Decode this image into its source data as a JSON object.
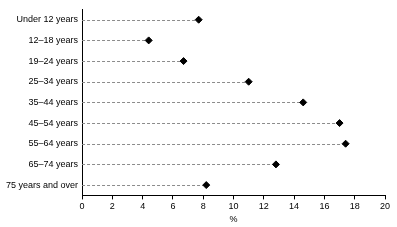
{
  "chart_data": {
    "type": "dot",
    "categories": [
      "Under 12 years",
      "12–18 years",
      "19–24 years",
      "25–34 years",
      "35–44 years",
      "45–54 years",
      "55–64 years",
      "65–74 years",
      "75 years and over"
    ],
    "values": [
      7.7,
      4.4,
      6.7,
      11.0,
      14.6,
      17.0,
      17.4,
      12.8,
      8.2
    ],
    "color": "#000000",
    "orientation": "horizontal",
    "xlim": [
      0,
      20
    ],
    "xticks": [
      0,
      2,
      4,
      6,
      8,
      10,
      12,
      14,
      16,
      18,
      20
    ],
    "xlabel": "%",
    "grid": false,
    "marker": "diamond",
    "line_style": "dashed"
  }
}
